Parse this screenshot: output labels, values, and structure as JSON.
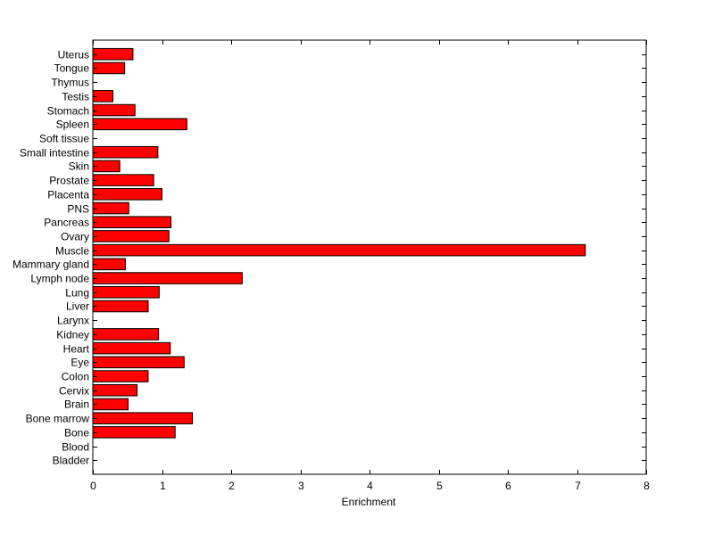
{
  "chart_data": {
    "type": "bar",
    "orientation": "horizontal",
    "xlabel": "Enrichment",
    "xlim": [
      0,
      8
    ],
    "xticks": [
      0,
      1,
      2,
      3,
      4,
      5,
      6,
      7,
      8
    ],
    "bar_color": "#ff0000",
    "bar_edge_color": "#000000",
    "grid": false,
    "categories": [
      "Bladder",
      "Blood",
      "Bone",
      "Bone marrow",
      "Brain",
      "Cervix",
      "Colon",
      "Eye",
      "Heart",
      "Kidney",
      "Larynx",
      "Liver",
      "Lung",
      "Lymph node",
      "Mammary gland",
      "Muscle",
      "Ovary",
      "Pancreas",
      "PNS",
      "Placenta",
      "Prostate",
      "Skin",
      "Small intestine",
      "Soft tissue",
      "Spleen",
      "Stomach",
      "Testis",
      "Thymus",
      "Tongue",
      "Uterus"
    ],
    "values": [
      0,
      0,
      1.19,
      1.44,
      0.51,
      0.64,
      0.8,
      1.32,
      1.12,
      0.95,
      0,
      0.8,
      0.96,
      2.16,
      0.47,
      7.12,
      1.1,
      1.13,
      0.52,
      1.0,
      0.88,
      0.39,
      0.94,
      0,
      1.36,
      0.61,
      0.29,
      0,
      0.46,
      0.58
    ]
  }
}
